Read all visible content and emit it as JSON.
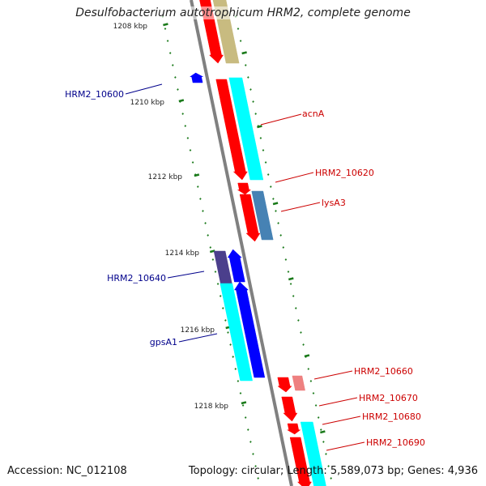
{
  "title": "Desulfobacterium autotrophicum HRM2, complete genome",
  "footer": {
    "accession": "Accession: NC_012108",
    "summary": "Topology: circular; Length: 5,589,073 bp; Genes: 4,936"
  },
  "ruler_labels": [
    "1208 kbp",
    "1210 kbp",
    "1212 kbp",
    "1214 kbp",
    "1216 kbp",
    "1218 kbp"
  ],
  "gene_labels": [
    {
      "text": "HRM2_10600",
      "color": "#00008b"
    },
    {
      "text": "acnA",
      "color": "#cc0000"
    },
    {
      "text": "HRM2_10620",
      "color": "#cc0000"
    },
    {
      "text": "lysA3",
      "color": "#cc0000"
    },
    {
      "text": "HRM2_10640",
      "color": "#00008b"
    },
    {
      "text": "gpsA1",
      "color": "#00008b"
    },
    {
      "text": "HRM2_10660",
      "color": "#cc0000"
    },
    {
      "text": "HRM2_10670",
      "color": "#cc0000"
    },
    {
      "text": "HRM2_10680",
      "color": "#cc0000"
    },
    {
      "text": "HRM2_10690",
      "color": "#cc0000"
    }
  ],
  "colors": {
    "backbone": "#808080",
    "ruler_tick": "#1a7a1a",
    "gene_forward": "#ff0000",
    "gene_reverse": "#0000ff",
    "cds_cyan": "#00ffff",
    "cds_khaki": "#c8bb80",
    "cds_steel": "#4682b4",
    "cds_slate": "#4b3f8c",
    "cds_pink": "#ee8080"
  }
}
